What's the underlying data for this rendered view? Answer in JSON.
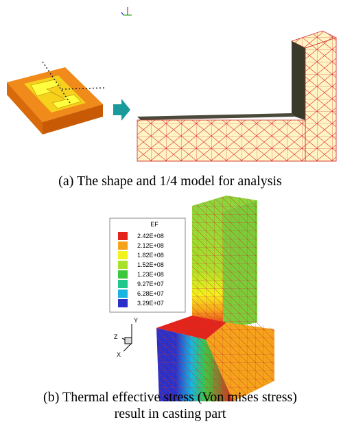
{
  "panel_a": {
    "caption": "(a) The shape and 1/4 model for analysis"
  },
  "panel_b": {
    "legend": {
      "title": "EF",
      "entries": [
        {
          "label": "2.42E+08",
          "color": "#e3241b"
        },
        {
          "label": "2.12E+08",
          "color": "#f5a31a"
        },
        {
          "label": "1.82E+08",
          "color": "#f2f21c"
        },
        {
          "label": "1.52E+08",
          "color": "#a8e02a"
        },
        {
          "label": "1.23E+08",
          "color": "#3cc83c"
        },
        {
          "label": "9.27E+07",
          "color": "#20c88c"
        },
        {
          "label": "6.28E+07",
          "color": "#1ab4e0"
        },
        {
          "label": "3.29E+07",
          "color": "#2a30c8"
        }
      ]
    },
    "axes": {
      "y": "Y",
      "z": "Z",
      "x": "X"
    },
    "caption": [
      "(b) Thermal effective stress (Von mises stress)",
      "result in casting part"
    ]
  }
}
